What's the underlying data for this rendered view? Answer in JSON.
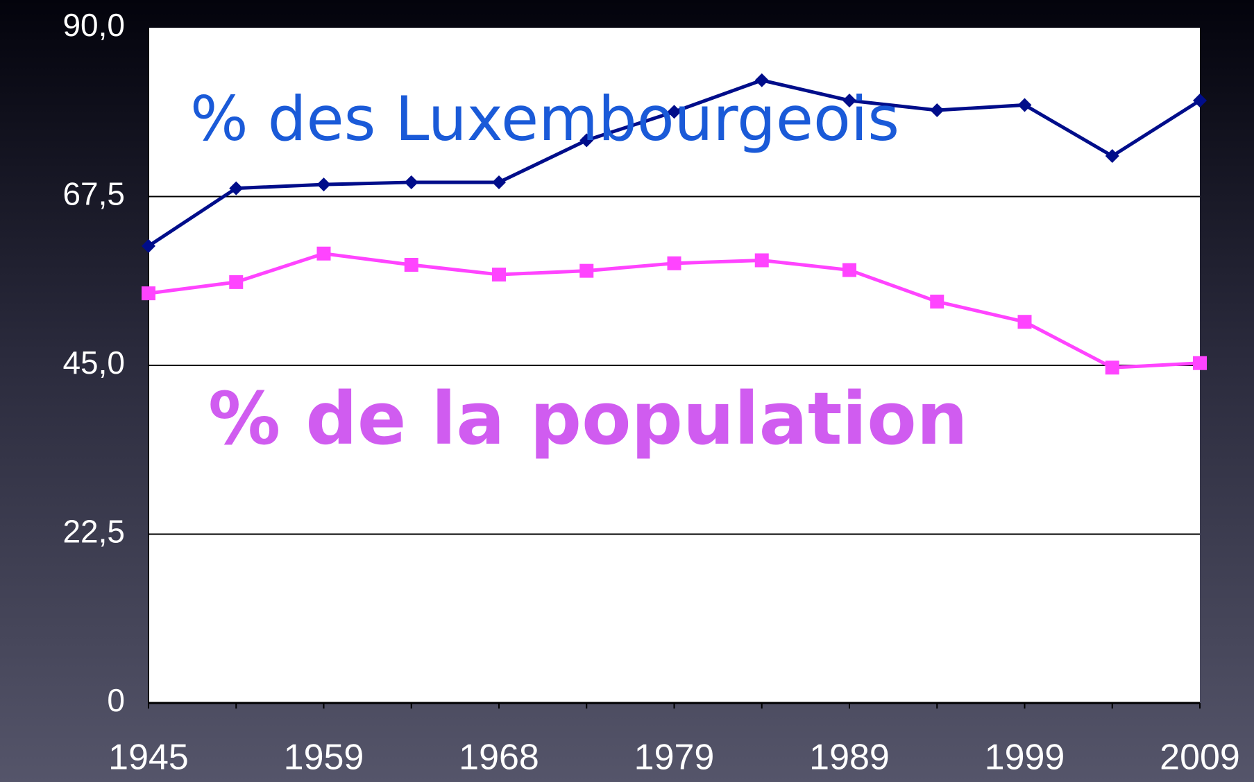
{
  "chart_data": {
    "type": "line",
    "categories": [
      "1945",
      null,
      "1959",
      null,
      "1968",
      null,
      "1979",
      null,
      "1989",
      null,
      "1999",
      null,
      "2009"
    ],
    "series": [
      {
        "name": "% des Luxembourgeois",
        "color": "#000d8a",
        "marker": "diamond",
        "label_color": "#1a5ad8",
        "values": [
          60.9,
          68.6,
          69.1,
          69.4,
          69.4,
          75.0,
          78.8,
          83.0,
          80.3,
          79.0,
          79.7,
          72.9,
          80.3
        ]
      },
      {
        "name": "% de la population",
        "color": "#ff44ff",
        "marker": "square",
        "label_color": "#d05cf0",
        "values": [
          54.6,
          56.1,
          59.9,
          58.4,
          57.1,
          57.6,
          58.6,
          59.0,
          57.7,
          53.5,
          50.8,
          44.7,
          45.3
        ]
      }
    ],
    "ylim": [
      0,
      90
    ],
    "yticks": [
      0,
      {
        "value": 22.5,
        "label": "22,5"
      },
      {
        "value": 45,
        "label": "45,0"
      },
      {
        "value": 67.5,
        "label": "67,5"
      },
      {
        "value": 90,
        "label": "90,0"
      }
    ],
    "grid": true
  }
}
